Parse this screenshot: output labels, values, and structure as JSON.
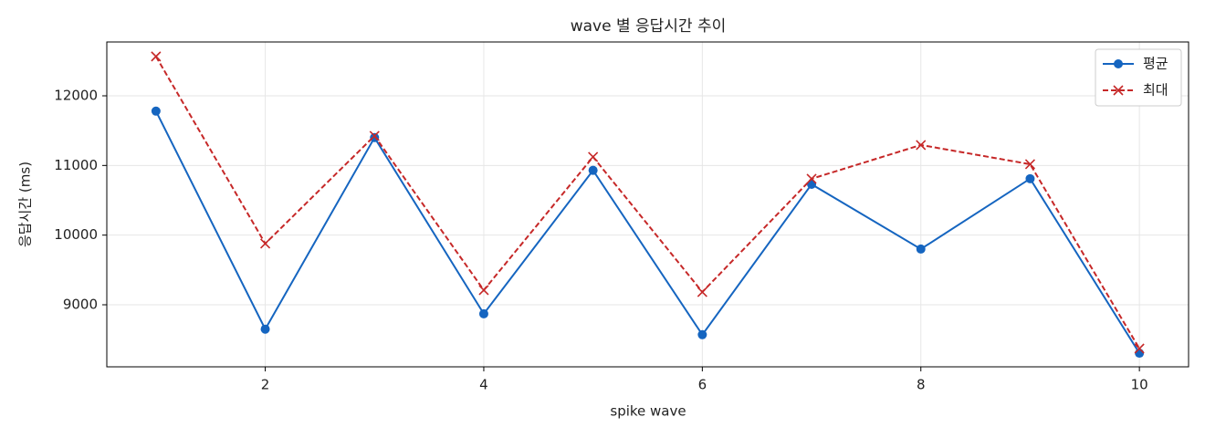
{
  "chart_data": {
    "type": "line",
    "title": "wave 별 응답시간 추이",
    "x_label": "spike wave",
    "y_label": "응답시간 (ms)",
    "x": [
      1,
      2,
      3,
      4,
      5,
      6,
      7,
      8,
      9,
      10
    ],
    "series": [
      {
        "name": "평균",
        "color": "#1565c0",
        "marker": "circle",
        "dash": false,
        "values": [
          11780,
          8650,
          11400,
          8870,
          10930,
          8570,
          10730,
          9800,
          10810,
          8305
        ]
      },
      {
        "name": "최대",
        "color": "#c62828",
        "marker": "x",
        "dash": true,
        "values": [
          12565,
          9878,
          11425,
          9210,
          11123,
          9183,
          10809,
          11294,
          11018,
          8371
        ]
      }
    ],
    "xlim": [
      0.55,
      10.45
    ],
    "xticks": [
      2,
      4,
      6,
      8,
      10
    ],
    "ylim": [
      8109,
      12773
    ],
    "yticks": [
      9000,
      10000,
      11000,
      12000
    ],
    "grid": true,
    "legend": "upper right"
  }
}
